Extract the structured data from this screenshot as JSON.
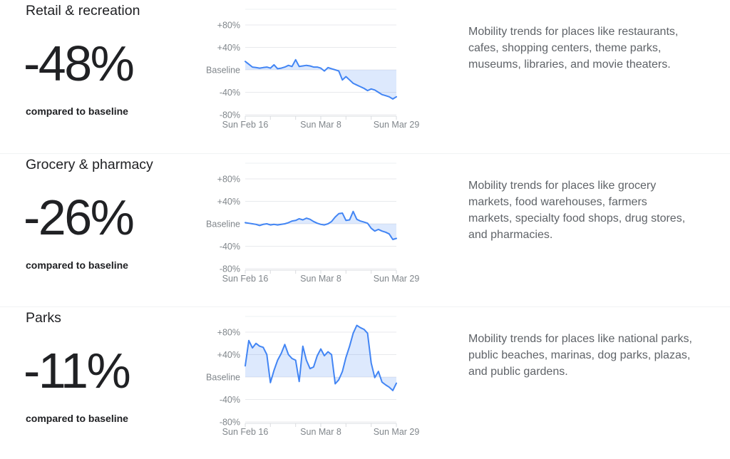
{
  "palette": {
    "line": "#4285f4",
    "fill": "#4285f4",
    "fill_opacity": 0.18,
    "fill_on_white": "#dbe7fc",
    "grid": "#e8eaed",
    "plot_top_border": "#eef1f3",
    "axis": "#dadce0",
    "tick_label": "#80868b",
    "heading": "#202124",
    "value_text": "#202124",
    "caption_text": "#202124",
    "description_text": "#5f6368",
    "divider": "#f1f3f4",
    "background": "#ffffff"
  },
  "sections": [
    {
      "title": "Retail & recreation",
      "value": "-48%",
      "caption": "compared to baseline",
      "description_lines": [
        "Mobility trends for places like restaurants,",
        "cafes, shopping centers, theme parks,",
        "museums, libraries, and movie theaters."
      ]
    },
    {
      "title": "Grocery & pharmacy",
      "value": "-26%",
      "caption": "compared to baseline",
      "description_lines": [
        "Mobility trends for places like grocery",
        "markets, food warehouses, farmers",
        "markets, specialty food shops, drug stores,",
        "and pharmacies."
      ]
    },
    {
      "title": "Parks",
      "value": "-11%",
      "caption": "compared to baseline",
      "description_lines": [
        "Mobility trends for places like national parks,",
        "public beaches, marinas, dog parks, plazas,",
        "and public gardens."
      ]
    }
  ],
  "chart_data": [
    {
      "type": "area",
      "title": "Retail & recreation mobility vs baseline (%)",
      "ylim": [
        -100,
        100
      ],
      "grid": true,
      "y_ticks": [
        "+80%",
        "+40%",
        "Baseline",
        "-40%",
        "-80%"
      ],
      "y_tick_values": [
        80,
        40,
        0,
        -40,
        -80
      ],
      "x_ticks": [
        "Sun Feb 16",
        "Sun Mar 8",
        "Sun Mar 29"
      ],
      "x_tick_days": [
        0,
        21,
        42
      ],
      "minor_tick_days": [
        0,
        7,
        14,
        21,
        28,
        35,
        42
      ],
      "dates": [
        "Feb 16",
        "Feb 17",
        "Feb 18",
        "Feb 19",
        "Feb 20",
        "Feb 21",
        "Feb 22",
        "Feb 23",
        "Feb 24",
        "Feb 25",
        "Feb 26",
        "Feb 27",
        "Feb 28",
        "Feb 29",
        "Mar 1",
        "Mar 2",
        "Mar 3",
        "Mar 4",
        "Mar 5",
        "Mar 6",
        "Mar 7",
        "Mar 8",
        "Mar 9",
        "Mar 10",
        "Mar 11",
        "Mar 12",
        "Mar 13",
        "Mar 14",
        "Mar 15",
        "Mar 16",
        "Mar 17",
        "Mar 18",
        "Mar 19",
        "Mar 20",
        "Mar 21",
        "Mar 22",
        "Mar 23",
        "Mar 24",
        "Mar 25",
        "Mar 26",
        "Mar 27",
        "Mar 28",
        "Mar 29"
      ],
      "values": [
        15,
        10,
        5,
        4,
        3,
        4,
        5,
        3,
        9,
        2,
        3,
        5,
        8,
        6,
        18,
        6,
        7,
        8,
        7,
        5,
        5,
        3,
        -2,
        4,
        2,
        0,
        -2,
        -18,
        -12,
        -18,
        -24,
        -27,
        -30,
        -33,
        -37,
        -34,
        -36,
        -40,
        -44,
        -46,
        -48,
        -52,
        -48
      ]
    },
    {
      "type": "area",
      "title": "Grocery & pharmacy mobility vs baseline (%)",
      "ylim": [
        -100,
        100
      ],
      "grid": true,
      "y_ticks": [
        "+80%",
        "+40%",
        "Baseline",
        "-40%",
        "-80%"
      ],
      "y_tick_values": [
        80,
        40,
        0,
        -40,
        -80
      ],
      "x_ticks": [
        "Sun Feb 16",
        "Sun Mar 8",
        "Sun Mar 29"
      ],
      "x_tick_days": [
        0,
        21,
        42
      ],
      "minor_tick_days": [
        0,
        7,
        14,
        21,
        28,
        35,
        42
      ],
      "dates": [
        "Feb 16",
        "Feb 17",
        "Feb 18",
        "Feb 19",
        "Feb 20",
        "Feb 21",
        "Feb 22",
        "Feb 23",
        "Feb 24",
        "Feb 25",
        "Feb 26",
        "Feb 27",
        "Feb 28",
        "Feb 29",
        "Mar 1",
        "Mar 2",
        "Mar 3",
        "Mar 4",
        "Mar 5",
        "Mar 6",
        "Mar 7",
        "Mar 8",
        "Mar 9",
        "Mar 10",
        "Mar 11",
        "Mar 12",
        "Mar 13",
        "Mar 14",
        "Mar 15",
        "Mar 16",
        "Mar 17",
        "Mar 18",
        "Mar 19",
        "Mar 20",
        "Mar 21",
        "Mar 22",
        "Mar 23",
        "Mar 24",
        "Mar 25",
        "Mar 26",
        "Mar 27",
        "Mar 28",
        "Mar 29"
      ],
      "values": [
        2,
        1,
        0,
        -1,
        -3,
        -1,
        0,
        -2,
        -1,
        -2,
        -1,
        0,
        2,
        5,
        6,
        9,
        7,
        10,
        8,
        4,
        1,
        -1,
        -2,
        0,
        4,
        12,
        18,
        19,
        6,
        7,
        22,
        8,
        5,
        3,
        1,
        -8,
        -13,
        -10,
        -13,
        -15,
        -18,
        -28,
        -26
      ]
    },
    {
      "type": "area",
      "title": "Parks mobility vs baseline (%)",
      "ylim": [
        -100,
        100
      ],
      "grid": true,
      "y_ticks": [
        "+80%",
        "+40%",
        "Baseline",
        "-40%",
        "-80%"
      ],
      "y_tick_values": [
        80,
        40,
        0,
        -40,
        -80
      ],
      "x_ticks": [
        "Sun Feb 16",
        "Sun Mar 8",
        "Sun Mar 29"
      ],
      "x_tick_days": [
        0,
        21,
        42
      ],
      "minor_tick_days": [
        0,
        7,
        14,
        21,
        28,
        35,
        42
      ],
      "dates": [
        "Feb 16",
        "Feb 17",
        "Feb 18",
        "Feb 19",
        "Feb 20",
        "Feb 21",
        "Feb 22",
        "Feb 23",
        "Feb 24",
        "Feb 25",
        "Feb 26",
        "Feb 27",
        "Feb 28",
        "Feb 29",
        "Mar 1",
        "Mar 2",
        "Mar 3",
        "Mar 4",
        "Mar 5",
        "Mar 6",
        "Mar 7",
        "Mar 8",
        "Mar 9",
        "Mar 10",
        "Mar 11",
        "Mar 12",
        "Mar 13",
        "Mar 14",
        "Mar 15",
        "Mar 16",
        "Mar 17",
        "Mar 18",
        "Mar 19",
        "Mar 20",
        "Mar 21",
        "Mar 22",
        "Mar 23",
        "Mar 24",
        "Mar 25",
        "Mar 26",
        "Mar 27",
        "Mar 28",
        "Mar 29"
      ],
      "values": [
        20,
        65,
        52,
        60,
        55,
        53,
        40,
        -10,
        12,
        30,
        42,
        58,
        40,
        33,
        30,
        -8,
        55,
        30,
        15,
        18,
        38,
        50,
        38,
        45,
        40,
        -12,
        -5,
        10,
        35,
        55,
        78,
        92,
        88,
        85,
        78,
        25,
        -1,
        10,
        -9,
        -14,
        -18,
        -24,
        -11
      ]
    }
  ]
}
